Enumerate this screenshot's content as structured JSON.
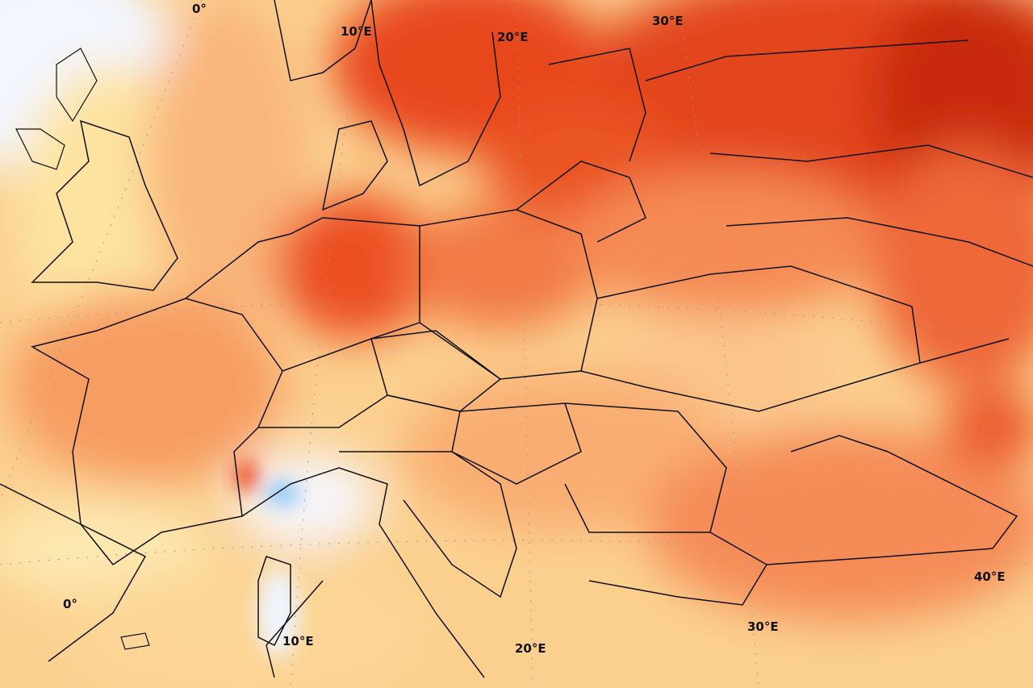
{
  "map": {
    "colors": {
      "sea_light": "#f3f6ff",
      "pale_yellow": "#fdf0b0",
      "light_orange": "#fbc98a",
      "orange": "#f8a36a",
      "orange_red": "#f47a45",
      "red": "#e6401c",
      "dark_red": "#c92a0c",
      "cold_blue": "#8cc8f5",
      "border": "#111111"
    },
    "graticule_labels": [
      {
        "text": "0°",
        "pos": "top"
      },
      {
        "text": "10°E",
        "pos": "top"
      },
      {
        "text": "20°E",
        "pos": "top"
      },
      {
        "text": "30°E",
        "pos": "top"
      },
      {
        "text": "40°E",
        "pos": "right"
      },
      {
        "text": "0°",
        "pos": "left"
      },
      {
        "text": "10°E",
        "pos": "bottom"
      },
      {
        "text": "20°E",
        "pos": "bottom"
      },
      {
        "text": "30°E",
        "pos": "bottom"
      }
    ]
  }
}
